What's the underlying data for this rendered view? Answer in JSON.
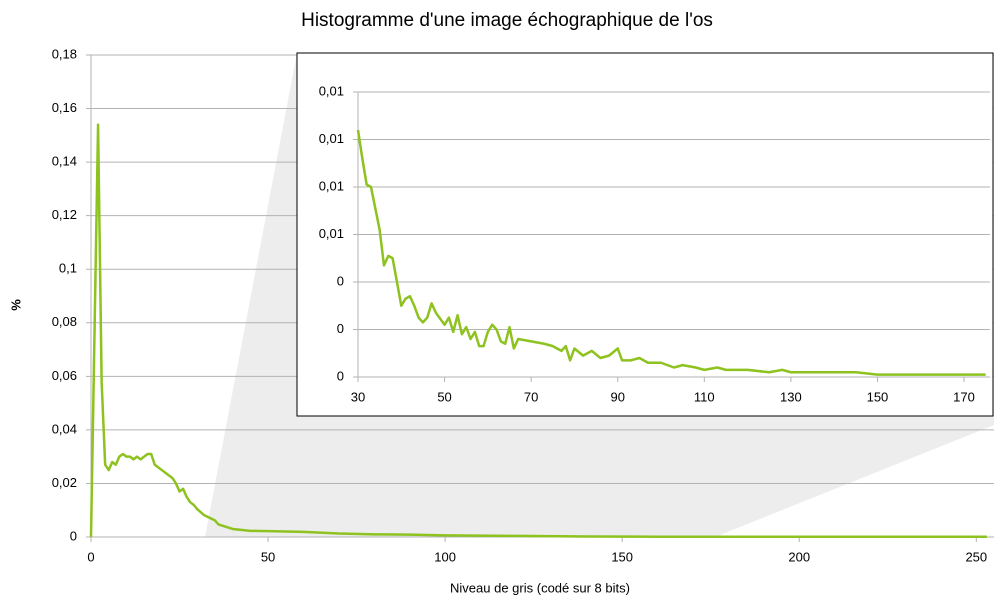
{
  "chart_data": [
    {
      "type": "line",
      "title": "Histogramme d'une image échographique de l'os",
      "x_label": "Niveau de gris (codé sur 8 bits)",
      "y_label": "%",
      "xlim": [
        0,
        255
      ],
      "xticks": [
        0,
        50,
        100,
        150,
        200,
        250
      ],
      "ylim": [
        0,
        0.18
      ],
      "yticks": [
        0,
        {
          "value": 0.02,
          "label": "0,02"
        },
        {
          "value": 0.04,
          "label": "0,04"
        },
        {
          "value": 0.06,
          "label": "0,06"
        },
        {
          "value": 0.08,
          "label": "0,08"
        },
        {
          "value": 0.1,
          "label": "0,1"
        },
        {
          "value": 0.12,
          "label": "0,12"
        },
        {
          "value": 0.14,
          "label": "0,14"
        },
        {
          "value": 0.16,
          "label": "0,16"
        },
        {
          "value": 0.18,
          "label": "0,18"
        }
      ],
      "grid": true,
      "color": "#8dc21f",
      "x": [
        0,
        1,
        2,
        3,
        4,
        5,
        6,
        7,
        8,
        9,
        10,
        11,
        12,
        13,
        14,
        15,
        16,
        17,
        18,
        19,
        20,
        21,
        22,
        23,
        24,
        25,
        26,
        27,
        28,
        29,
        30,
        32,
        35,
        36,
        40,
        45,
        50,
        60,
        70,
        80,
        90,
        100,
        120,
        140,
        160,
        175,
        200,
        225,
        253
      ],
      "values": [
        0,
        0.077,
        0.154,
        0.058,
        0.027,
        0.025,
        0.028,
        0.027,
        0.03,
        0.031,
        0.03,
        0.03,
        0.029,
        0.03,
        0.029,
        0.03,
        0.031,
        0.031,
        0.027,
        0.026,
        0.025,
        0.024,
        0.023,
        0.022,
        0.02,
        0.017,
        0.018,
        0.015,
        0.013,
        0.012,
        0.0104,
        0.0081,
        0.0062,
        0.0047,
        0.003,
        0.0023,
        0.0022,
        0.0019,
        0.0013,
        0.001,
        0.0009,
        0.0006,
        0.0004,
        0.0002,
        0.0001,
        0.0001,
        0.0001,
        0.0001,
        0.0001
      ]
    },
    {
      "type": "line",
      "xlim": [
        30,
        176
      ],
      "xticks": [
        30,
        50,
        70,
        90,
        110,
        130,
        150,
        170
      ],
      "ylim": [
        0,
        0.012
      ],
      "yticks": [
        0,
        {
          "value": 0.002,
          "label": "0"
        },
        {
          "value": 0.004,
          "label": "0"
        },
        {
          "value": 0.006,
          "label": "0,01"
        },
        {
          "value": 0.008,
          "label": "0,01"
        },
        {
          "value": 0.01,
          "label": "0,01"
        },
        {
          "value": 0.012,
          "label": "0,01"
        }
      ],
      "grid": true,
      "color": "#8dc21f",
      "x": [
        30,
        31,
        32,
        33,
        34,
        35,
        36,
        37,
        38,
        39,
        40,
        41,
        42,
        43,
        44,
        45,
        46,
        47,
        48,
        50,
        51,
        52,
        53,
        54,
        55,
        56,
        57,
        58,
        59,
        60,
        61,
        62,
        63,
        64,
        65,
        66,
        67,
        70,
        73,
        75,
        77,
        78,
        79,
        80,
        82,
        84,
        86,
        88,
        90,
        91,
        93,
        95,
        97,
        100,
        103,
        105,
        108,
        110,
        113,
        115,
        118,
        120,
        125,
        128,
        130,
        135,
        140,
        145,
        150,
        155,
        160,
        165,
        170,
        175
      ],
      "values": [
        0.0104,
        0.0092,
        0.0081,
        0.008,
        0.0071,
        0.0062,
        0.0047,
        0.0051,
        0.005,
        0.004,
        0.003,
        0.0033,
        0.0034,
        0.003,
        0.0025,
        0.0023,
        0.0025,
        0.0031,
        0.0027,
        0.0022,
        0.0025,
        0.0019,
        0.0026,
        0.0018,
        0.0021,
        0.0016,
        0.0019,
        0.0013,
        0.0013,
        0.0019,
        0.0022,
        0.002,
        0.0015,
        0.0014,
        0.0021,
        0.0012,
        0.0016,
        0.0015,
        0.0014,
        0.0013,
        0.0011,
        0.0013,
        0.0007,
        0.0012,
        0.0009,
        0.0011,
        0.0008,
        0.0009,
        0.0012,
        0.0007,
        0.0007,
        0.0008,
        0.0006,
        0.0006,
        0.0004,
        0.0005,
        0.0004,
        0.0003,
        0.0004,
        0.0003,
        0.0003,
        0.0003,
        0.0002,
        0.0003,
        0.0002,
        0.0002,
        0.0002,
        0.0002,
        0.0001,
        0.0001,
        0.0001,
        0.0001,
        0.0001,
        0.0001
      ]
    }
  ]
}
